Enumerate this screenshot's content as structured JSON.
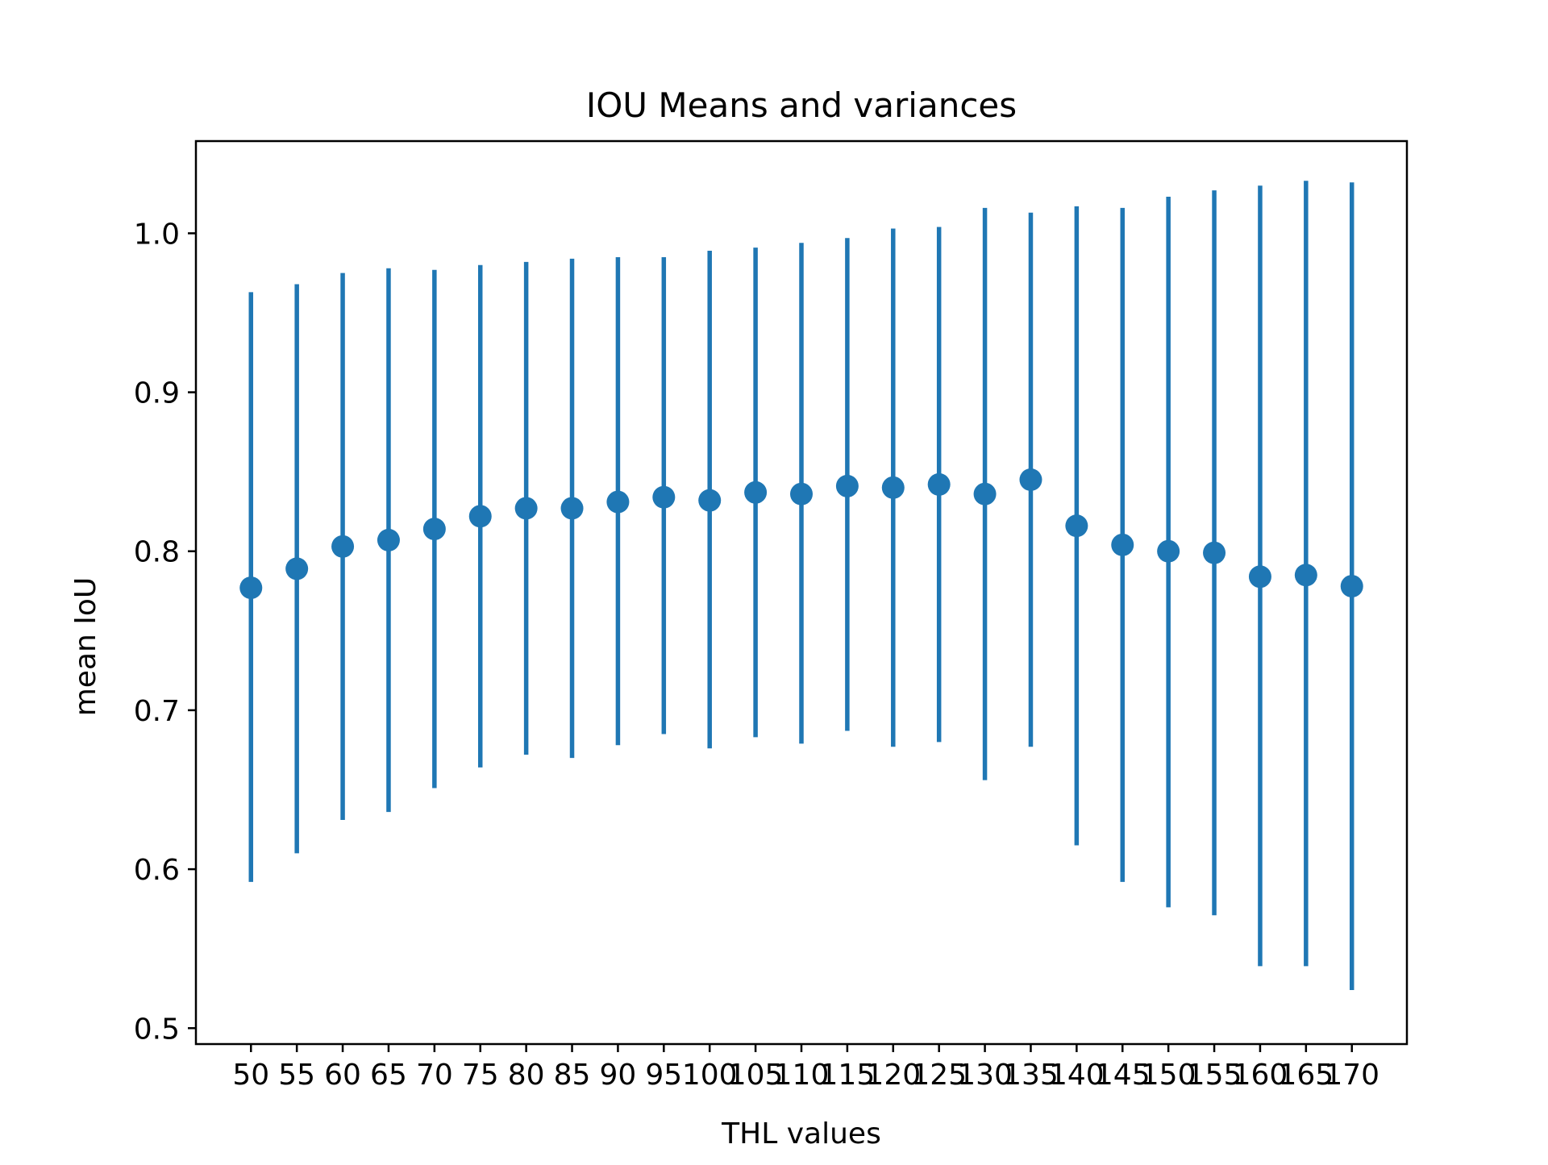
{
  "chart_data": {
    "type": "scatter",
    "title": "IOU Means and variances",
    "xlabel": "THL values",
    "ylabel": "mean IoU",
    "x": [
      50,
      55,
      60,
      65,
      70,
      75,
      80,
      85,
      90,
      95,
      100,
      105,
      110,
      115,
      120,
      125,
      130,
      135,
      140,
      145,
      150,
      155,
      160,
      165,
      170
    ],
    "x_tick_labels": [
      "50",
      "55",
      "60",
      "65",
      "70",
      "75",
      "80",
      "85",
      "90",
      "95",
      "100",
      "105",
      "110",
      "115",
      "120",
      "125",
      "130",
      "135",
      "140",
      "145",
      "150",
      "155",
      "160",
      "165",
      "170"
    ],
    "series": [
      {
        "values": [
          0.777,
          0.789,
          0.803,
          0.807,
          0.814,
          0.822,
          0.827,
          0.827,
          0.831,
          0.834,
          0.832,
          0.837,
          0.836,
          0.841,
          0.84,
          0.842,
          0.836,
          0.845,
          0.816,
          0.804,
          0.8,
          0.799,
          0.784,
          0.785,
          0.778
        ],
        "error_low": [
          0.592,
          0.61,
          0.631,
          0.636,
          0.651,
          0.664,
          0.672,
          0.67,
          0.678,
          0.685,
          0.676,
          0.683,
          0.679,
          0.687,
          0.677,
          0.68,
          0.656,
          0.677,
          0.615,
          0.592,
          0.576,
          0.571,
          0.539,
          0.539,
          0.524
        ],
        "error_high": [
          0.963,
          0.968,
          0.975,
          0.978,
          0.977,
          0.98,
          0.982,
          0.984,
          0.985,
          0.985,
          0.989,
          0.991,
          0.994,
          0.997,
          1.003,
          1.004,
          1.016,
          1.013,
          1.017,
          1.016,
          1.023,
          1.027,
          1.03,
          1.033,
          1.032
        ],
        "color": "#1f77b4"
      }
    ],
    "ylim": [
      0.49,
      1.058
    ],
    "xlim": [
      44,
      176
    ],
    "y_ticks": [
      0.5,
      0.6,
      0.7,
      0.8,
      0.9,
      1.0
    ],
    "y_tick_labels": [
      "0.5",
      "0.6",
      "0.7",
      "0.8",
      "0.9",
      "1.0"
    ],
    "grid": false,
    "legend": "none"
  }
}
